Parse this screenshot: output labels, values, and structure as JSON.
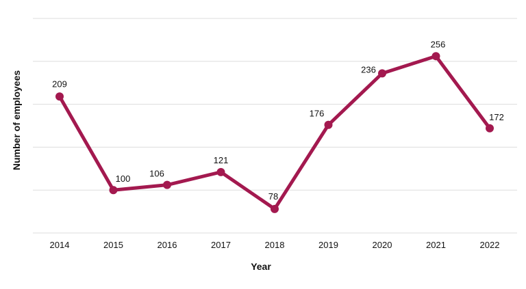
{
  "chart_data": {
    "type": "line",
    "title": "",
    "xlabel": "Year",
    "ylabel": "Number of employees",
    "categories": [
      "2014",
      "2015",
      "2016",
      "2017",
      "2018",
      "2019",
      "2020",
      "2021",
      "2022"
    ],
    "series": [
      {
        "values": [
          209,
          100,
          106,
          121,
          78,
          176,
          236,
          256,
          172
        ]
      }
    ],
    "data_labels": [
      "209",
      "100",
      "106",
      "121",
      "78",
      "176",
      "236",
      "256",
      "172"
    ],
    "ylim": [
      50,
      300
    ],
    "y_gridlines": [
      50,
      100,
      150,
      200,
      250,
      300
    ],
    "y_tick_labels_shown": false,
    "grid": true,
    "legend": "none",
    "colors": {
      "line": "#a3194f",
      "grid": "#dddddd",
      "text": "#111111"
    }
  }
}
